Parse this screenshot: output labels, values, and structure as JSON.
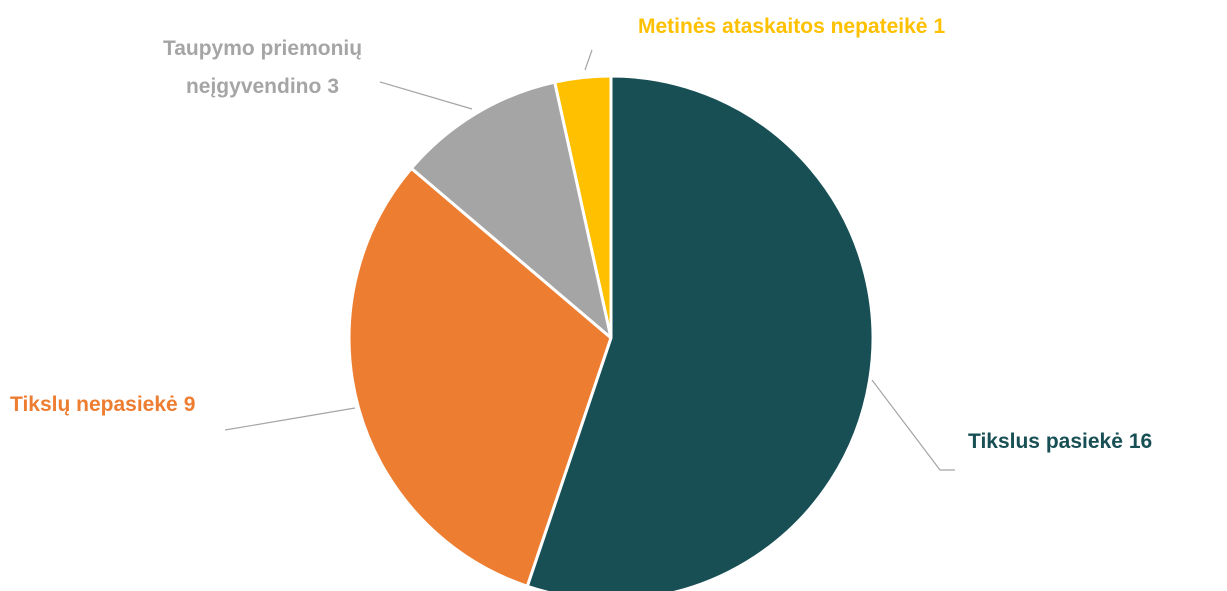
{
  "chart_data": {
    "type": "pie",
    "categories": [
      "Tikslus pasiekė",
      "Tikslų nepasiekė",
      "Taupymo priemonių neįgyvendino",
      "Metinės ataskaitos nepateikė"
    ],
    "values": [
      16,
      9,
      3,
      1
    ],
    "colors": [
      "#174f55",
      "#ed7d31",
      "#a5a5a5",
      "#ffc000"
    ]
  }
}
